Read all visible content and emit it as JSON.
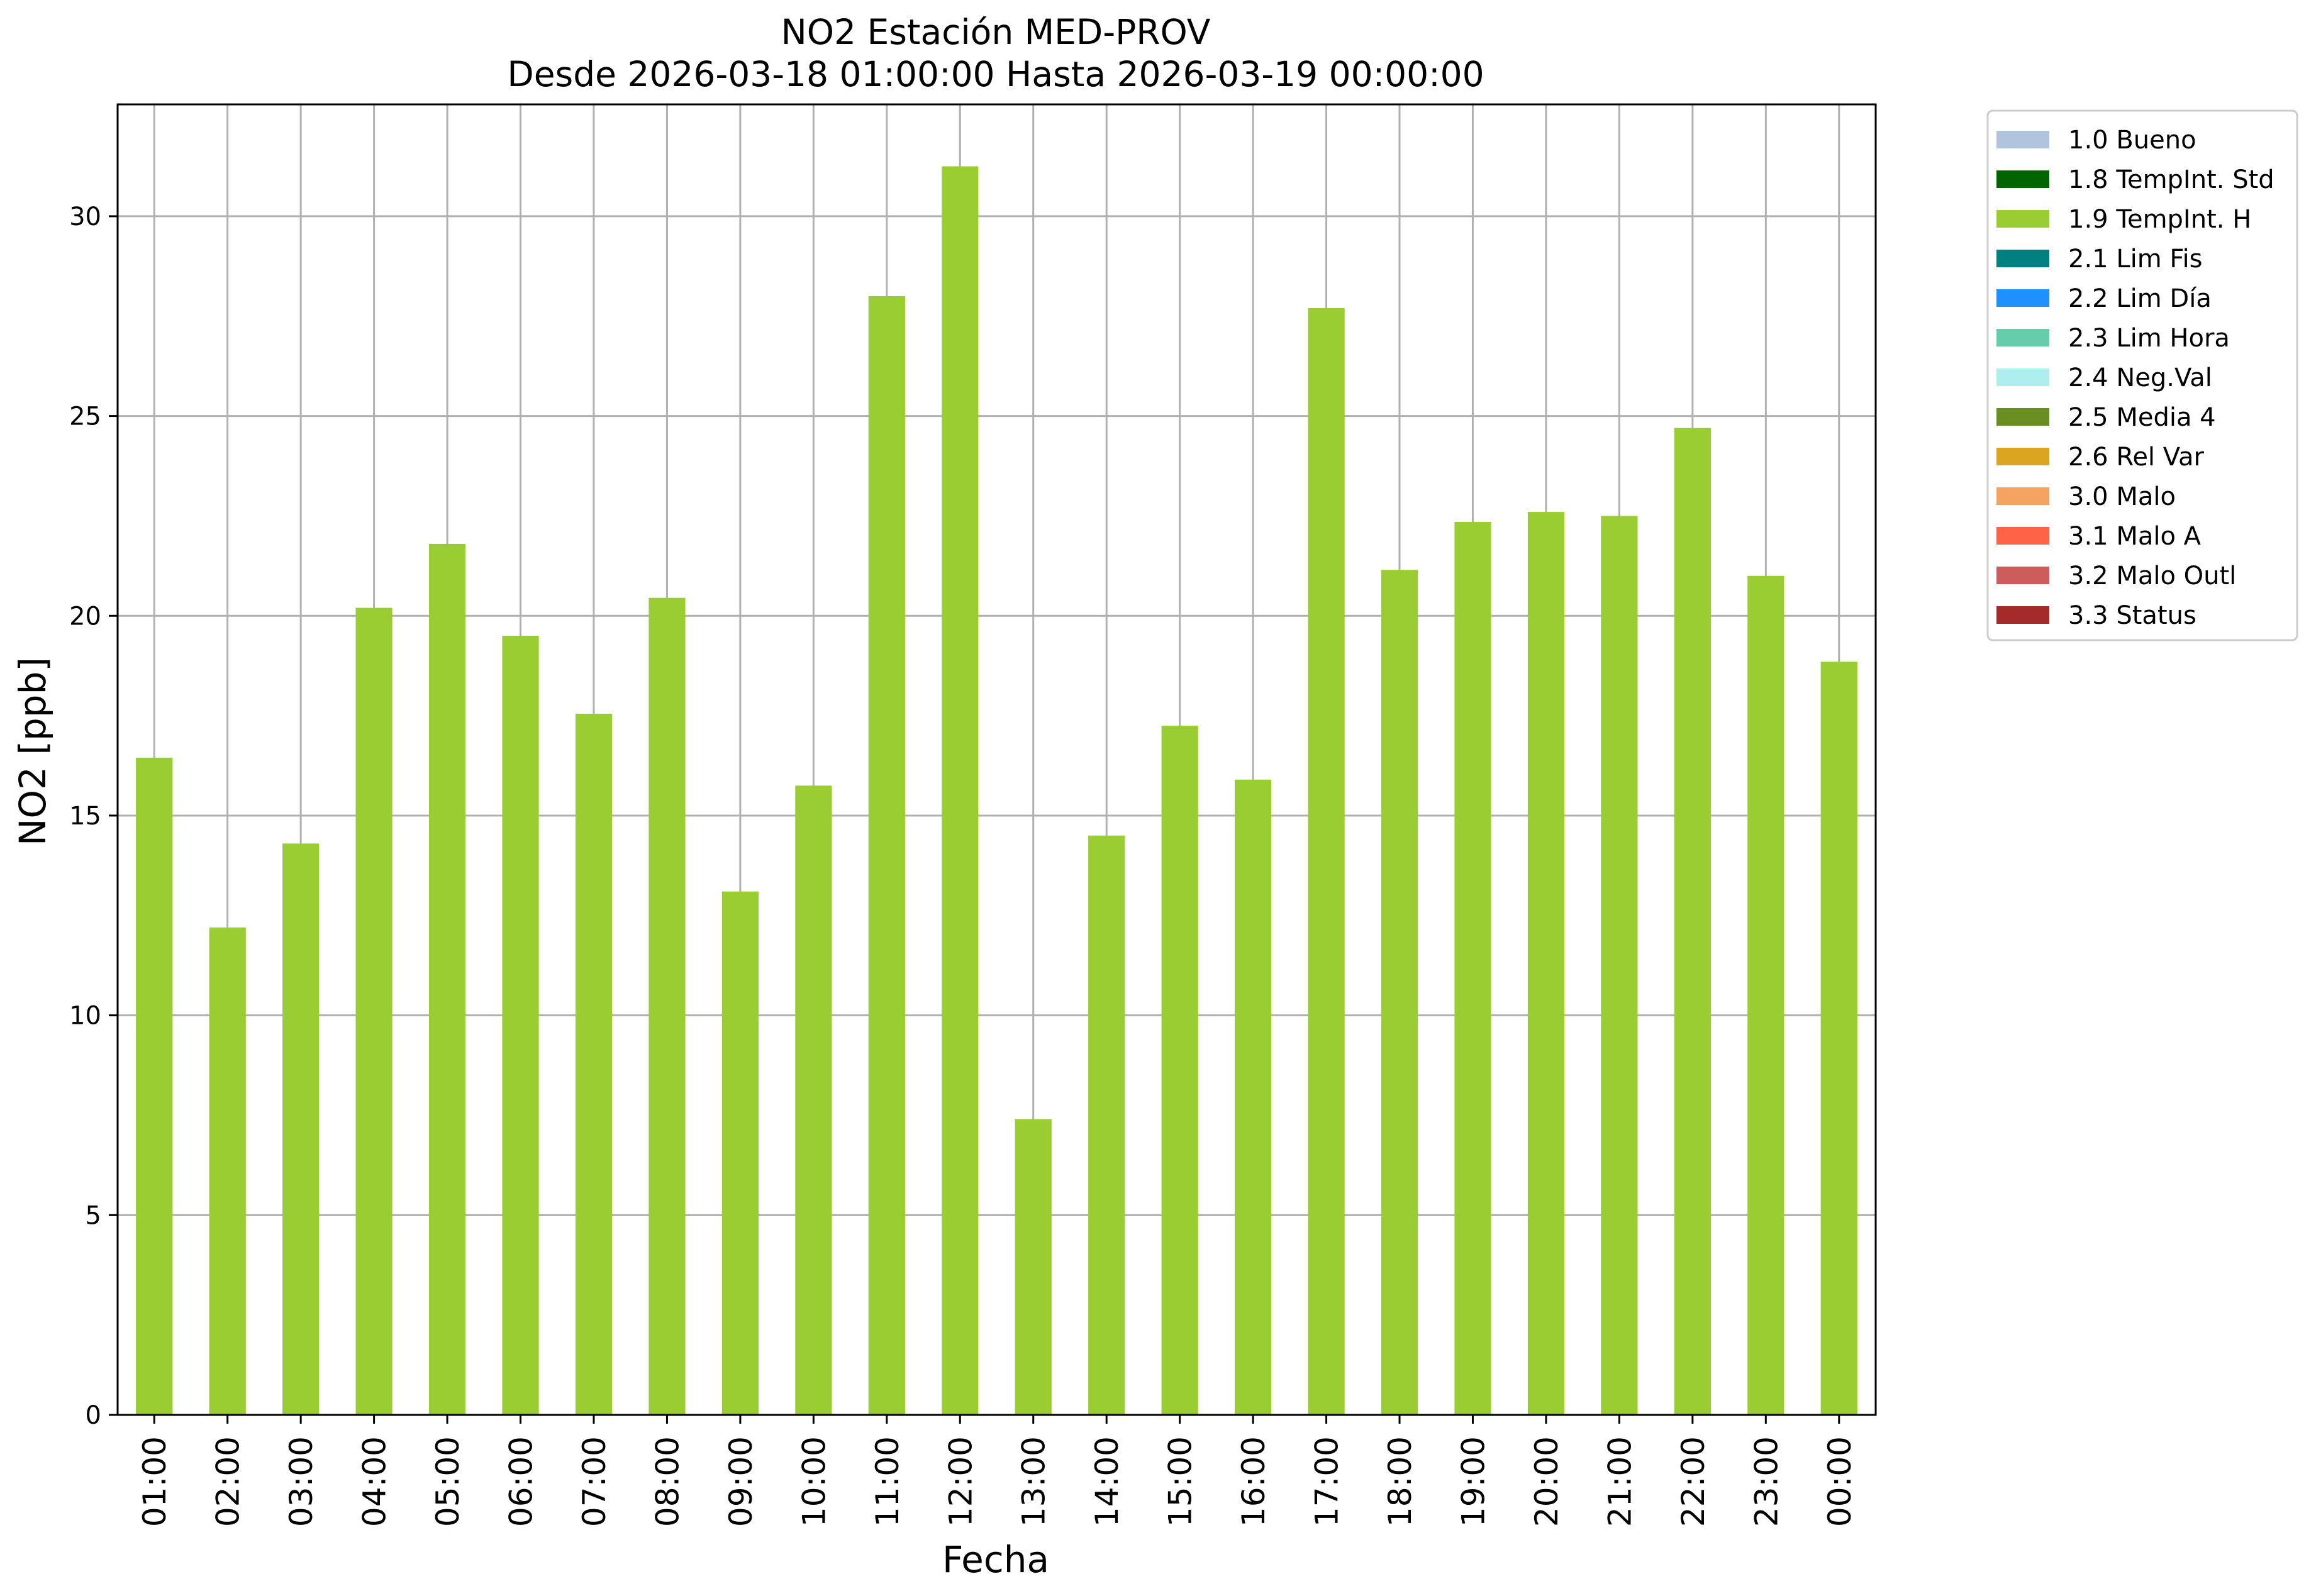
{
  "chart_data": {
    "type": "bar",
    "title": "NO2 Estación MED-PROV",
    "subtitle": "Desde 2026-03-18 01:00:00 Hasta 2026-03-19 00:00:00",
    "xlabel": "Fecha",
    "ylabel": "NO2 [ppb]",
    "ylim": [
      0,
      32.8
    ],
    "yticks": [
      0,
      5,
      10,
      15,
      20,
      25,
      30
    ],
    "grid": true,
    "legend_position": "outside-top-right",
    "categories": [
      "01:00",
      "02:00",
      "03:00",
      "04:00",
      "05:00",
      "06:00",
      "07:00",
      "08:00",
      "09:00",
      "10:00",
      "11:00",
      "12:00",
      "13:00",
      "14:00",
      "15:00",
      "16:00",
      "17:00",
      "18:00",
      "19:00",
      "20:00",
      "21:00",
      "22:00",
      "23:00",
      "00:00"
    ],
    "series": [
      {
        "name": "1.9 TempInt. H",
        "color": "#9acd32",
        "values": [
          16.45,
          12.2,
          14.3,
          20.2,
          21.8,
          19.5,
          17.55,
          20.45,
          13.1,
          15.75,
          28.0,
          31.25,
          7.4,
          14.5,
          17.25,
          15.9,
          27.7,
          21.15,
          22.35,
          22.6,
          22.5,
          24.7,
          21.0,
          18.85
        ]
      }
    ],
    "legend": [
      {
        "label": "1.0 Bueno",
        "color": "#b0c4de"
      },
      {
        "label": "1.8 TempInt. Std",
        "color": "#006400"
      },
      {
        "label": "1.9 TempInt. H",
        "color": "#9acd32"
      },
      {
        "label": "2.1 Lim Fis",
        "color": "#008080"
      },
      {
        "label": "2.2 Lim Día",
        "color": "#1e90ff"
      },
      {
        "label": "2.3 Lim Hora",
        "color": "#66cdaa"
      },
      {
        "label": "2.4 Neg.Val",
        "color": "#afeeee"
      },
      {
        "label": "2.5 Media 4",
        "color": "#6b8e23"
      },
      {
        "label": "2.6 Rel Var",
        "color": "#daa520"
      },
      {
        "label": "3.0 Malo",
        "color": "#f4a460"
      },
      {
        "label": "3.1 Malo A",
        "color": "#ff6347"
      },
      {
        "label": "3.2 Malo Outl",
        "color": "#cd5c5c"
      },
      {
        "label": "3.3 Status",
        "color": "#a52a2a"
      }
    ]
  }
}
